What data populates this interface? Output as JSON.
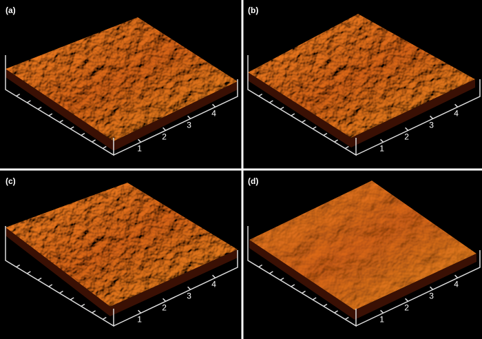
{
  "panels": [
    {
      "label": "(a)",
      "ticks": [
        1,
        2,
        3,
        4
      ]
    },
    {
      "label": "(b)",
      "ticks": [
        1,
        2,
        3,
        4
      ]
    },
    {
      "label": "(c)",
      "ticks": [
        1,
        2,
        3,
        4
      ]
    },
    {
      "label": "(d)",
      "ticks": [
        1,
        2,
        3,
        4
      ]
    }
  ]
}
